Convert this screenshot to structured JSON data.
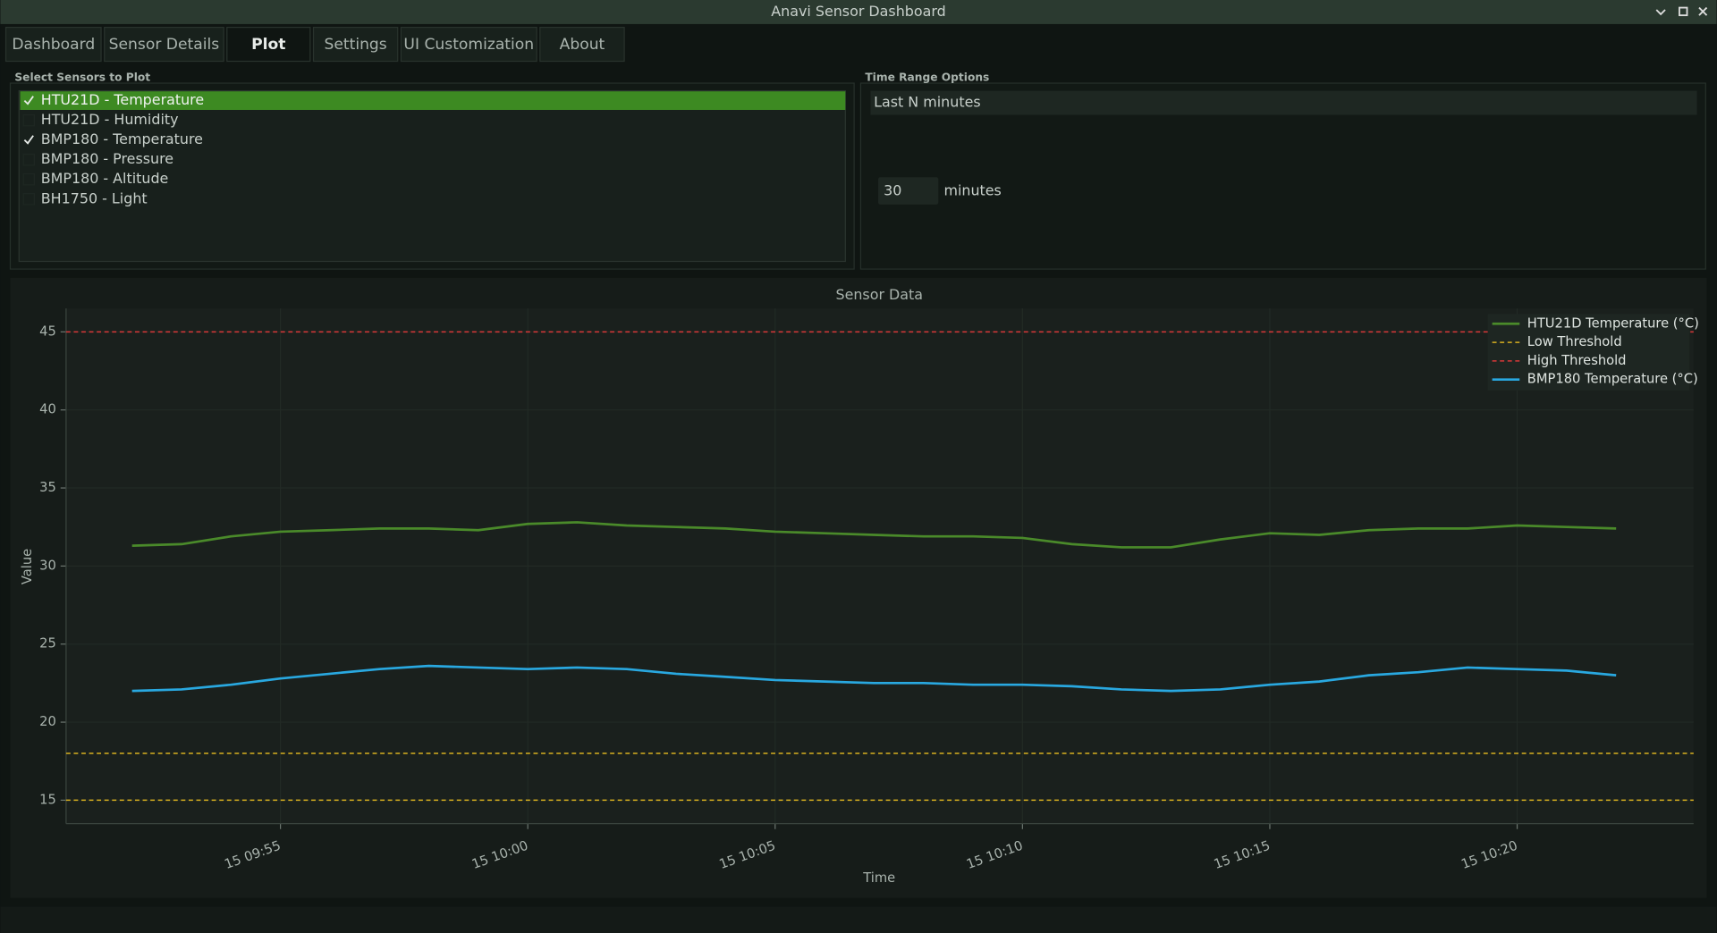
{
  "window": {
    "title": "Anavi Sensor Dashboard"
  },
  "tabs": [
    "Dashboard",
    "Sensor Details",
    "Plot",
    "Settings",
    "UI Customization",
    "About"
  ],
  "active_tab": 2,
  "sensors": {
    "label": "Select Sensors to Plot",
    "selected": 0,
    "items": [
      {
        "label": "HTU21D - Temperature",
        "checked": true
      },
      {
        "label": "HTU21D - Humidity",
        "checked": false
      },
      {
        "label": "BMP180 - Temperature",
        "checked": true
      },
      {
        "label": "BMP180 - Pressure",
        "checked": false
      },
      {
        "label": "BMP180 - Altitude",
        "checked": false
      },
      {
        "label": "BH1750 - Light",
        "checked": false
      }
    ]
  },
  "time_range": {
    "label": "Time Range Options",
    "mode": "Last N minutes",
    "value": 30,
    "unit": "minutes"
  },
  "chart_data": {
    "type": "line",
    "title": "Sensor Data",
    "xlabel": "Time",
    "ylabel": "Value",
    "grid": true,
    "x": [
      "15 09:52",
      "15 09:53",
      "15 09:54",
      "15 09:55",
      "15 09:56",
      "15 09:57",
      "15 09:58",
      "15 09:59",
      "15 10:00",
      "15 10:01",
      "15 10:02",
      "15 10:03",
      "15 10:04",
      "15 10:05",
      "15 10:06",
      "15 10:07",
      "15 10:08",
      "15 10:09",
      "15 10:10",
      "15 10:11",
      "15 10:12",
      "15 10:13",
      "15 10:14",
      "15 10:15",
      "15 10:16",
      "15 10:17",
      "15 10:18",
      "15 10:19",
      "15 10:20",
      "15 10:21",
      "15 10:22"
    ],
    "series": [
      {
        "name": "HTU21D Temperature (°C)",
        "color": "#4a8a2a",
        "values": [
          31.3,
          31.4,
          31.9,
          32.2,
          32.3,
          32.4,
          32.4,
          32.3,
          32.7,
          32.8,
          32.6,
          32.5,
          32.4,
          32.2,
          32.1,
          32.0,
          31.9,
          31.9,
          31.8,
          31.4,
          31.2,
          31.2,
          31.7,
          32.1,
          32.0,
          32.3,
          32.4,
          32.4,
          32.6,
          32.5,
          32.4
        ]
      },
      {
        "name": "BMP180 Temperature (°C)",
        "color": "#29a8e0",
        "values": [
          22.0,
          22.1,
          22.4,
          22.8,
          23.1,
          23.4,
          23.6,
          23.5,
          23.4,
          23.5,
          23.4,
          23.1,
          22.9,
          22.7,
          22.6,
          22.5,
          22.5,
          22.4,
          22.4,
          22.3,
          22.1,
          22.0,
          22.1,
          22.4,
          22.6,
          23.0,
          23.2,
          23.5,
          23.4,
          23.3,
          23.0
        ]
      }
    ],
    "hlines": [
      {
        "name": "Low Threshold",
        "color": "#d8b020",
        "values": [
          18,
          15
        ]
      },
      {
        "name": "High Threshold",
        "color": "#d83838",
        "values": [
          45
        ]
      }
    ],
    "xlim": [
      "15 09:50:40",
      "15 10:23:34"
    ],
    "xticks": [
      "15 09:55",
      "15 10:00",
      "15 10:05",
      "15 10:10",
      "15 10:15",
      "15 10:20"
    ],
    "ylim": [
      13.5,
      46.5
    ],
    "yticks": [
      15,
      20,
      25,
      30,
      35,
      40,
      45
    ]
  }
}
